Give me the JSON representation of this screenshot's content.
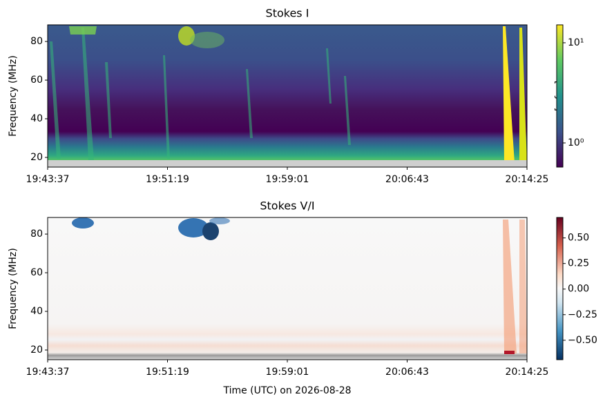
{
  "chart_data": [
    {
      "type": "heatmap",
      "title": "Stokes I",
      "ylabel": "Frequency (MHz)",
      "xlim": [
        71017,
        72865
      ],
      "xticks": [
        {
          "value": 71017,
          "label": "19:43:37"
        },
        {
          "value": 71479,
          "label": "19:51:19"
        },
        {
          "value": 71941,
          "label": "19:59:01"
        },
        {
          "value": 72403,
          "label": "20:06:43"
        },
        {
          "value": 72865,
          "label": "20:14:25"
        }
      ],
      "ylim": [
        15,
        88.6
      ],
      "yticks": [
        20,
        40,
        60,
        80
      ],
      "grid": false,
      "colorbar": {
        "label": "[s.f.u.]",
        "colormap": "viridis",
        "scale": "log",
        "lim": [
          0.574,
          15.1
        ],
        "ticks": [
          {
            "value": 1,
            "label": "10⁰"
          },
          {
            "value": 10,
            "label": "10¹"
          }
        ]
      }
    },
    {
      "type": "heatmap",
      "title": "Stokes V/I",
      "ylabel": "Frequency (MHz)",
      "xlabel": "Time (UTC) on 2026-08-28",
      "xlim": [
        71017,
        72865
      ],
      "xticks": [
        {
          "value": 71017,
          "label": "19:43:37"
        },
        {
          "value": 71479,
          "label": "19:51:19"
        },
        {
          "value": 71941,
          "label": "19:59:01"
        },
        {
          "value": 72403,
          "label": "20:06:43"
        },
        {
          "value": 72865,
          "label": "20:14:25"
        }
      ],
      "ylim": [
        15,
        88.6
      ],
      "yticks": [
        20,
        40,
        60,
        80
      ],
      "grid": false,
      "colorbar": {
        "colormap": "RdBu_r",
        "scale": "linear",
        "lim": [
          -0.69,
          0.7
        ],
        "ticks": [
          {
            "value": -0.5,
            "label": "−0.50"
          },
          {
            "value": -0.25,
            "label": "−0.25"
          },
          {
            "value": 0,
            "label": "0.00"
          },
          {
            "value": 0.25,
            "label": "0.25"
          },
          {
            "value": 0.5,
            "label": "0.50"
          }
        ]
      }
    }
  ]
}
